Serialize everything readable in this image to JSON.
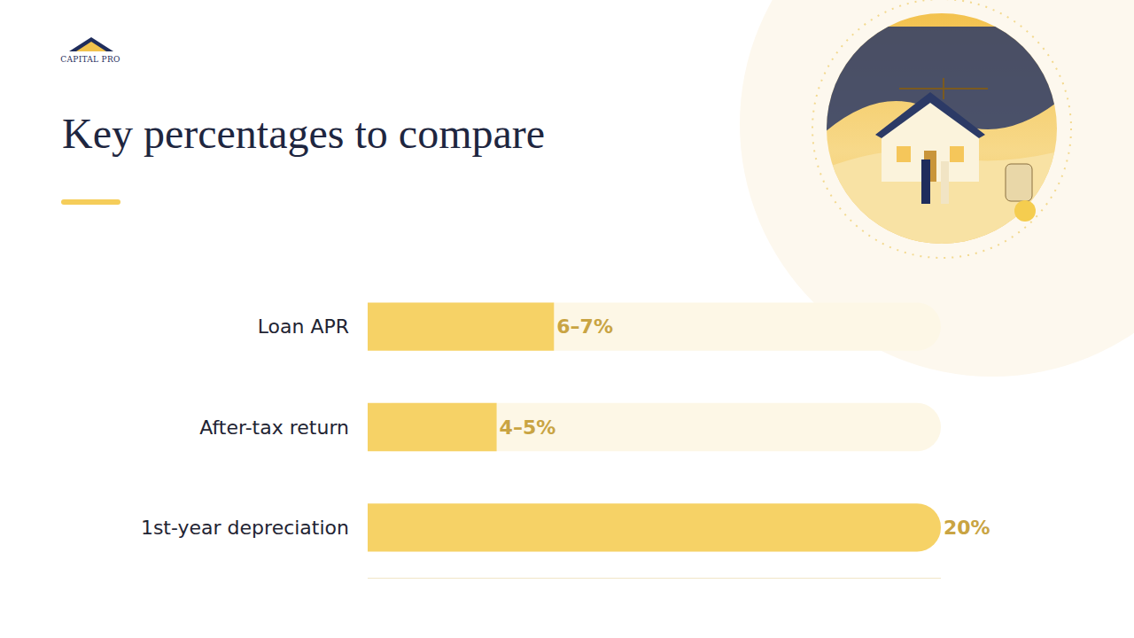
{
  "logo": "CAPITAL PRO",
  "chart_data": {
    "type": "bar",
    "title": "Key percentages to compare",
    "orientation": "horizontal",
    "categories": [
      "Loan APR",
      "After-tax return",
      "1st-year depreciation"
    ],
    "values": [
      6.5,
      4.5,
      20
    ],
    "value_labels": [
      "6–7%",
      "4–5%",
      "20%"
    ],
    "data_labels": true,
    "xlim": [
      0,
      20
    ],
    "xticks": [],
    "tick_labels": "y",
    "grid": false,
    "color": "#f6d266"
  }
}
